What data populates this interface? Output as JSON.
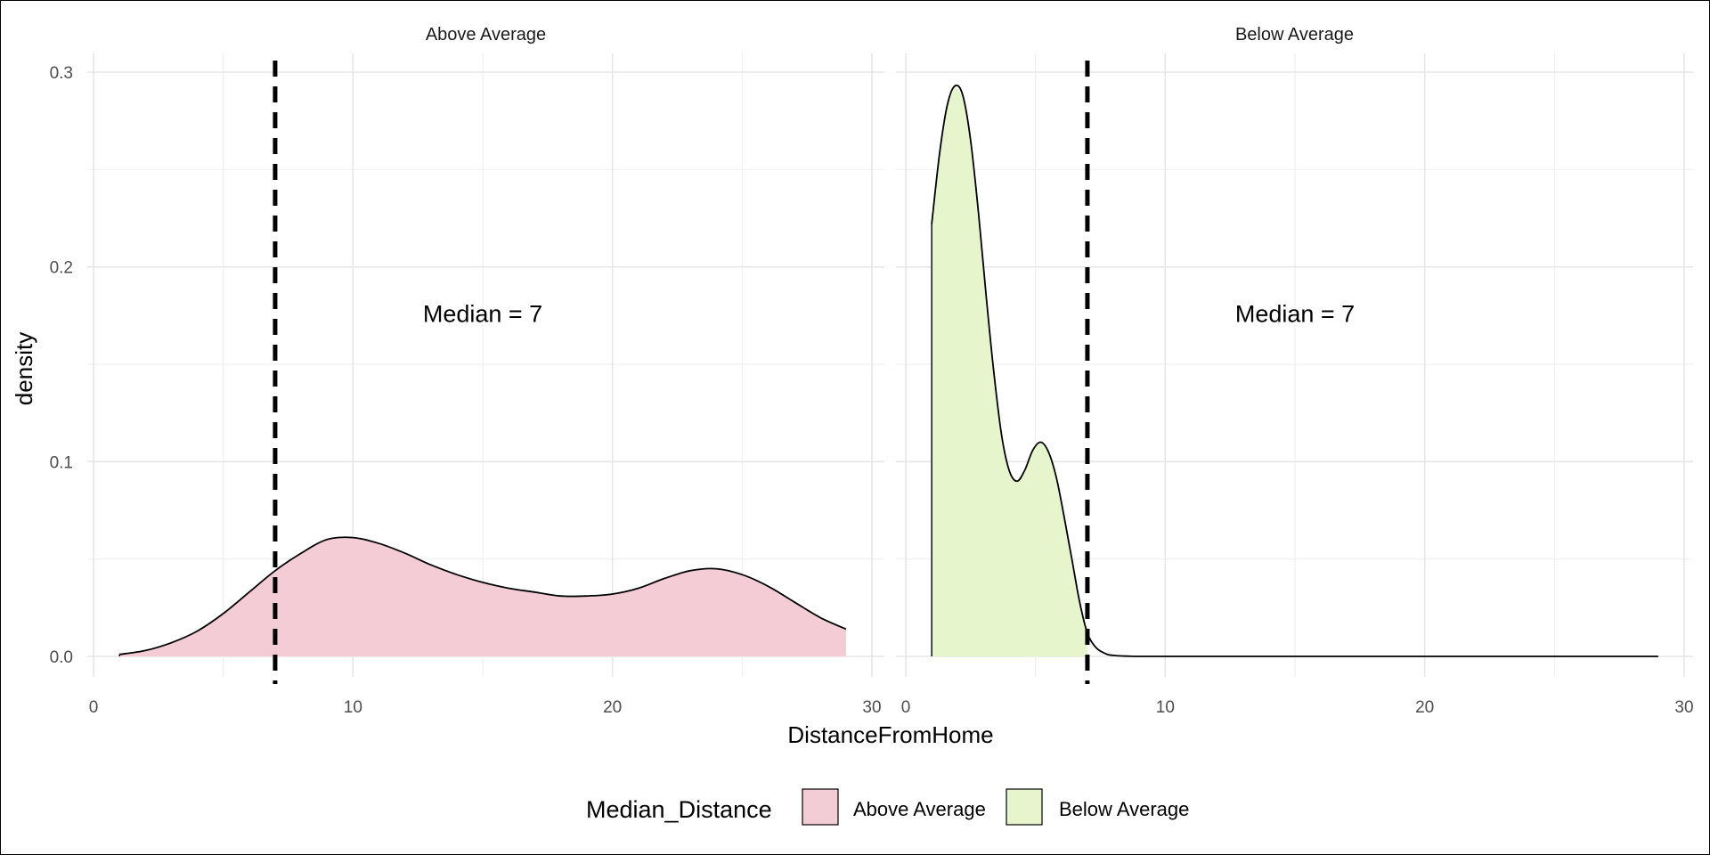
{
  "chart_data": {
    "type": "area",
    "xlabel": "DistanceFromHome",
    "ylabel": "density",
    "xlim": [
      0,
      30
    ],
    "ylim": [
      0,
      0.3
    ],
    "x_ticks": [
      0,
      10,
      20,
      30
    ],
    "y_ticks": [
      0.0,
      0.1,
      0.2,
      0.3
    ],
    "y_tick_labels": [
      "0.0",
      "0.1",
      "0.2",
      "0.3"
    ],
    "grid": true,
    "legend": {
      "title": "Median_Distance",
      "position": "bottom",
      "entries": [
        {
          "label": "Above Average",
          "color": "#f4ccd6"
        },
        {
          "label": "Below Average",
          "color": "#e6f5cc"
        }
      ]
    },
    "panels": [
      {
        "strip": "Above Average",
        "fill": "#f4ccd6",
        "median": 7,
        "annotation": "Median = 7",
        "annotation_x": 15,
        "annotation_y": 0.17,
        "area_range": [
          1,
          29
        ],
        "curve": [
          [
            1.0,
            0.001
          ],
          [
            2.0,
            0.003
          ],
          [
            3.0,
            0.007
          ],
          [
            4.0,
            0.013
          ],
          [
            5.0,
            0.022
          ],
          [
            6.0,
            0.033
          ],
          [
            7.0,
            0.044
          ],
          [
            8.0,
            0.053
          ],
          [
            9.0,
            0.06
          ],
          [
            10.0,
            0.061
          ],
          [
            11.0,
            0.058
          ],
          [
            12.0,
            0.053
          ],
          [
            13.0,
            0.047
          ],
          [
            14.0,
            0.042
          ],
          [
            15.0,
            0.038
          ],
          [
            16.0,
            0.035
          ],
          [
            17.0,
            0.033
          ],
          [
            18.0,
            0.031
          ],
          [
            19.0,
            0.031
          ],
          [
            20.0,
            0.032
          ],
          [
            21.0,
            0.035
          ],
          [
            22.0,
            0.04
          ],
          [
            23.0,
            0.044
          ],
          [
            24.0,
            0.045
          ],
          [
            25.0,
            0.042
          ],
          [
            26.0,
            0.036
          ],
          [
            27.0,
            0.028
          ],
          [
            28.0,
            0.02
          ],
          [
            29.0,
            0.014
          ]
        ]
      },
      {
        "strip": "Below Average",
        "fill": "#e6f5cc",
        "median": 7,
        "annotation": "Median = 7",
        "annotation_x": 15,
        "annotation_y": 0.17,
        "area_range": [
          1,
          7
        ],
        "curve": [
          [
            1.0,
            0.222
          ],
          [
            1.3,
            0.258
          ],
          [
            1.6,
            0.283
          ],
          [
            1.9,
            0.293
          ],
          [
            2.2,
            0.288
          ],
          [
            2.5,
            0.265
          ],
          [
            2.8,
            0.228
          ],
          [
            3.1,
            0.185
          ],
          [
            3.4,
            0.145
          ],
          [
            3.7,
            0.113
          ],
          [
            4.0,
            0.095
          ],
          [
            4.3,
            0.09
          ],
          [
            4.6,
            0.096
          ],
          [
            4.9,
            0.106
          ],
          [
            5.2,
            0.11
          ],
          [
            5.5,
            0.105
          ],
          [
            5.8,
            0.092
          ],
          [
            6.1,
            0.072
          ],
          [
            6.4,
            0.05
          ],
          [
            6.7,
            0.028
          ],
          [
            7.0,
            0.012
          ],
          [
            7.3,
            0.005
          ],
          [
            7.6,
            0.002
          ],
          [
            8.0,
            0.0005
          ],
          [
            9.0,
            0.0
          ],
          [
            12.0,
            0.0
          ],
          [
            16.0,
            0.0
          ],
          [
            20.0,
            0.0
          ],
          [
            24.0,
            0.0
          ],
          [
            29.0,
            0.0
          ]
        ]
      }
    ]
  }
}
